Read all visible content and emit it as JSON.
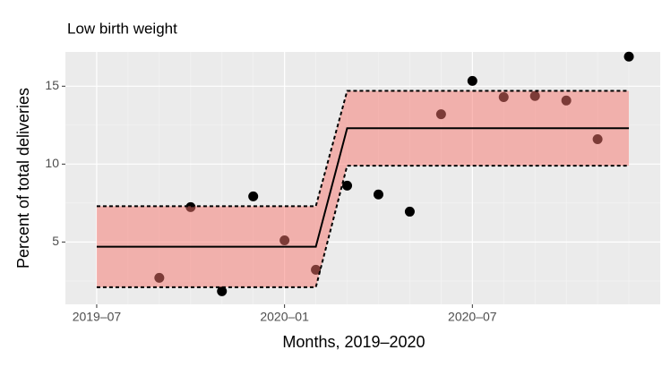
{
  "chart_data": {
    "type": "scatter",
    "title": "Low birth weight",
    "x_label": "Months, 2019–2020",
    "y_label": "Percent of total deliveries",
    "x": [
      "2019-09",
      "2019-10",
      "2019-11",
      "2019-12",
      "2020-01",
      "2020-02",
      "2020-03",
      "2020-04",
      "2020-05",
      "2020-06",
      "2020-07",
      "2020-08",
      "2020-09",
      "2020-10",
      "2020-11",
      "2020-12"
    ],
    "values": [
      2.7,
      7.24,
      1.84,
      7.93,
      5.11,
      3.22,
      8.62,
      8.05,
      6.95,
      13.2,
      15.34,
      14.3,
      14.37,
      14.08,
      11.6,
      16.9
    ],
    "color": "#000000",
    "fit": {
      "x": [
        "2019-07",
        "2020-02",
        "2020-03",
        "2020-12"
      ],
      "center": [
        4.7,
        4.7,
        12.3,
        12.3
      ],
      "upper": [
        7.3,
        7.3,
        14.7,
        14.7
      ],
      "lower": [
        2.1,
        2.1,
        9.9,
        9.9
      ],
      "line_color": "#000000",
      "band_color": "#f8766d"
    },
    "xlim": [
      "2019-06",
      "2021-01"
    ],
    "xticks": [
      {
        "value": "2019-07",
        "label": "2019–07"
      },
      {
        "value": "2020-01",
        "label": "2020–01"
      },
      {
        "value": "2020-07",
        "label": "2020–07"
      }
    ],
    "ylim": [
      1.0,
      17.2
    ],
    "yticks": [
      5,
      10,
      15
    ],
    "grid": true
  }
}
